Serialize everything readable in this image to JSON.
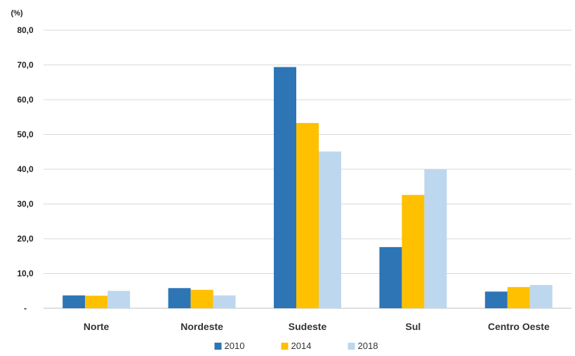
{
  "chart_data": {
    "type": "bar",
    "title": "",
    "xlabel": "",
    "ylabel": "(%)",
    "ylim": [
      0,
      80
    ],
    "yticks": [
      0,
      10,
      20,
      30,
      40,
      50,
      60,
      70,
      80
    ],
    "ytick_labels": [
      "-",
      "10,0",
      "20,0",
      "30,0",
      "40,0",
      "50,0",
      "60,0",
      "70,0",
      "80,0"
    ],
    "grid": true,
    "legend_position": "bottom",
    "categories": [
      "Norte",
      "Nordeste",
      "Sudeste",
      "Sul",
      "Centro Oeste"
    ],
    "series": [
      {
        "name": "2010",
        "color": "#2E75B6",
        "values": [
          3.7,
          5.8,
          69.4,
          17.6,
          4.8
        ]
      },
      {
        "name": "2014",
        "color": "#FFC000",
        "values": [
          3.6,
          5.3,
          53.3,
          32.6,
          6.1
        ]
      },
      {
        "name": "2018",
        "color": "#BDD7EE",
        "values": [
          5.0,
          3.7,
          45.1,
          40.0,
          6.7
        ]
      }
    ]
  }
}
